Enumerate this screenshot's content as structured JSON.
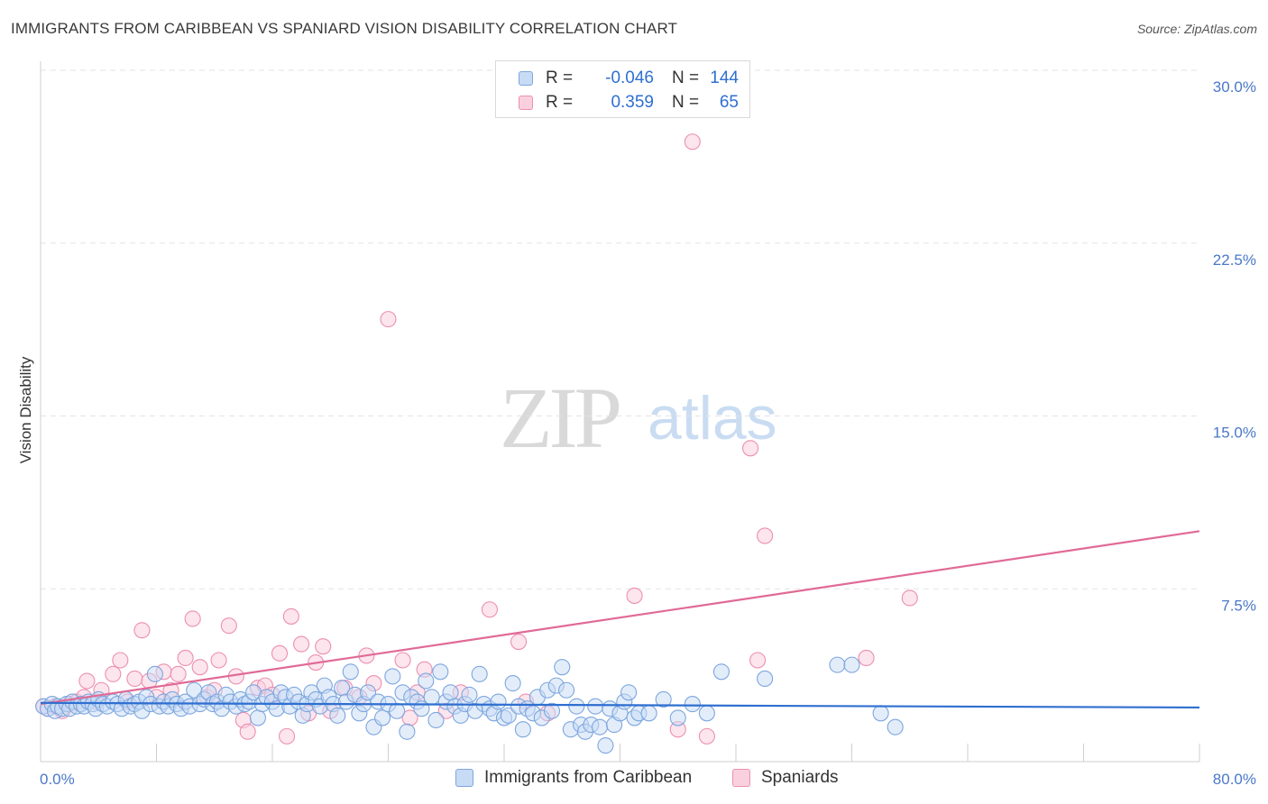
{
  "title": "IMMIGRANTS FROM CARIBBEAN VS SPANIARD VISION DISABILITY CORRELATION CHART",
  "source": "Source: ZipAtlas.com",
  "watermark": {
    "zip": "ZIP",
    "atlas": "atlas"
  },
  "legend_box": {
    "rows": [
      {
        "r_label": "R =",
        "r_value": "-0.046",
        "n_label": "N =",
        "n_value": "144"
      },
      {
        "r_label": "R =",
        "r_value": "0.359",
        "n_label": "N =",
        "n_value": "65"
      }
    ]
  },
  "colors": {
    "blue_fill": "#c8dbf5",
    "blue_stroke": "#7da6de",
    "blue_line": "#2f6fd0",
    "pink_fill": "#fbd0de",
    "pink_stroke": "#eb8fb0",
    "pink_line": "#e06a96",
    "grid": "#e3e3e3",
    "tick_text": "#4a78c8"
  },
  "chart_data": {
    "type": "scatter",
    "xlabel": "",
    "ylabel": "Vision Disability",
    "xlim": [
      0,
      80
    ],
    "ylim": [
      0,
      30
    ],
    "x_tick_labels": [
      {
        "value": 0,
        "label": "0.0%"
      },
      {
        "value": 80,
        "label": "80.0%"
      }
    ],
    "y_tick_labels": [
      {
        "value": 7.5,
        "label": "7.5%"
      },
      {
        "value": 15,
        "label": "15.0%"
      },
      {
        "value": 22.5,
        "label": "22.5%"
      },
      {
        "value": 30,
        "label": "30.0%"
      }
    ],
    "x_minor_ticks": [
      8,
      16,
      24,
      32,
      40,
      48,
      56,
      64,
      72,
      80
    ],
    "grid": true,
    "series": [
      {
        "name": "Immigrants from Caribbean",
        "color": "#7da6de",
        "trend": {
          "x": [
            0,
            80
          ],
          "y": [
            2.55,
            2.35
          ]
        },
        "points": [
          [
            0.2,
            2.4
          ],
          [
            0.5,
            2.3
          ],
          [
            0.8,
            2.5
          ],
          [
            1.0,
            2.2
          ],
          [
            1.2,
            2.4
          ],
          [
            1.5,
            2.3
          ],
          [
            1.8,
            2.5
          ],
          [
            2.0,
            2.3
          ],
          [
            2.2,
            2.6
          ],
          [
            2.5,
            2.4
          ],
          [
            2.8,
            2.5
          ],
          [
            3.0,
            2.4
          ],
          [
            3.3,
            2.6
          ],
          [
            3.6,
            2.5
          ],
          [
            3.8,
            2.3
          ],
          [
            4.0,
            2.7
          ],
          [
            4.3,
            2.5
          ],
          [
            4.6,
            2.4
          ],
          [
            5.0,
            2.6
          ],
          [
            5.3,
            2.5
          ],
          [
            5.6,
            2.3
          ],
          [
            5.9,
            2.7
          ],
          [
            6.2,
            2.4
          ],
          [
            6.5,
            2.5
          ],
          [
            6.8,
            2.6
          ],
          [
            7.0,
            2.2
          ],
          [
            7.3,
            2.8
          ],
          [
            7.6,
            2.5
          ],
          [
            7.9,
            3.8
          ],
          [
            8.2,
            2.4
          ],
          [
            8.5,
            2.6
          ],
          [
            8.8,
            2.4
          ],
          [
            9.1,
            2.7
          ],
          [
            9.4,
            2.5
          ],
          [
            9.7,
            2.3
          ],
          [
            10.0,
            2.6
          ],
          [
            10.3,
            2.4
          ],
          [
            10.6,
            3.1
          ],
          [
            11.0,
            2.5
          ],
          [
            11.3,
            2.7
          ],
          [
            11.6,
            3.0
          ],
          [
            11.9,
            2.5
          ],
          [
            12.2,
            2.6
          ],
          [
            12.5,
            2.3
          ],
          [
            12.8,
            2.9
          ],
          [
            13.1,
            2.6
          ],
          [
            13.5,
            2.4
          ],
          [
            13.8,
            2.7
          ],
          [
            14.1,
            2.5
          ],
          [
            14.4,
            2.6
          ],
          [
            14.7,
            3.0
          ],
          [
            15.0,
            1.9
          ],
          [
            15.3,
            2.5
          ],
          [
            15.6,
            2.8
          ],
          [
            16.0,
            2.6
          ],
          [
            16.3,
            2.3
          ],
          [
            16.6,
            3.0
          ],
          [
            16.9,
            2.8
          ],
          [
            17.2,
            2.4
          ],
          [
            17.5,
            2.9
          ],
          [
            17.8,
            2.6
          ],
          [
            18.1,
            2.0
          ],
          [
            18.4,
            2.5
          ],
          [
            18.7,
            3.0
          ],
          [
            19.0,
            2.7
          ],
          [
            19.3,
            2.4
          ],
          [
            19.6,
            3.3
          ],
          [
            19.9,
            2.8
          ],
          [
            20.2,
            2.5
          ],
          [
            20.5,
            2.0
          ],
          [
            20.8,
            3.2
          ],
          [
            21.1,
            2.6
          ],
          [
            21.4,
            3.9
          ],
          [
            21.7,
            2.9
          ],
          [
            22.0,
            2.1
          ],
          [
            22.3,
            2.5
          ],
          [
            22.6,
            3.0
          ],
          [
            23.0,
            1.5
          ],
          [
            23.3,
            2.6
          ],
          [
            23.6,
            1.9
          ],
          [
            24.0,
            2.5
          ],
          [
            24.3,
            3.7
          ],
          [
            24.6,
            2.2
          ],
          [
            25.0,
            3.0
          ],
          [
            25.3,
            1.3
          ],
          [
            25.6,
            2.8
          ],
          [
            26.0,
            2.6
          ],
          [
            26.3,
            2.3
          ],
          [
            26.6,
            3.5
          ],
          [
            27.0,
            2.8
          ],
          [
            27.3,
            1.8
          ],
          [
            27.6,
            3.9
          ],
          [
            28.0,
            2.6
          ],
          [
            28.3,
            3.0
          ],
          [
            28.6,
            2.4
          ],
          [
            29.0,
            2.0
          ],
          [
            29.3,
            2.5
          ],
          [
            29.6,
            2.9
          ],
          [
            30.0,
            2.2
          ],
          [
            30.3,
            3.8
          ],
          [
            30.6,
            2.5
          ],
          [
            31.0,
            2.3
          ],
          [
            31.3,
            2.1
          ],
          [
            31.6,
            2.6
          ],
          [
            32.0,
            1.9
          ],
          [
            32.3,
            2.0
          ],
          [
            32.6,
            3.4
          ],
          [
            33.0,
            2.4
          ],
          [
            33.3,
            1.4
          ],
          [
            33.6,
            2.3
          ],
          [
            34.0,
            2.1
          ],
          [
            34.3,
            2.8
          ],
          [
            34.6,
            1.9
          ],
          [
            35.0,
            3.1
          ],
          [
            35.3,
            2.2
          ],
          [
            35.6,
            3.3
          ],
          [
            36.0,
            4.1
          ],
          [
            36.3,
            3.1
          ],
          [
            36.6,
            1.4
          ],
          [
            37.0,
            2.4
          ],
          [
            37.3,
            1.6
          ],
          [
            37.6,
            1.3
          ],
          [
            38.0,
            1.6
          ],
          [
            38.3,
            2.4
          ],
          [
            38.6,
            1.5
          ],
          [
            39.0,
            0.7
          ],
          [
            39.3,
            2.3
          ],
          [
            39.6,
            1.6
          ],
          [
            40.0,
            2.1
          ],
          [
            40.3,
            2.6
          ],
          [
            40.6,
            3.0
          ],
          [
            41.0,
            1.9
          ],
          [
            41.3,
            2.1
          ],
          [
            42.0,
            2.1
          ],
          [
            43.0,
            2.7
          ],
          [
            44.0,
            1.9
          ],
          [
            45.0,
            2.5
          ],
          [
            46.0,
            2.1
          ],
          [
            47.0,
            3.9
          ],
          [
            50.0,
            3.6
          ],
          [
            55.0,
            4.2
          ],
          [
            56.0,
            4.2
          ],
          [
            58.0,
            2.1
          ],
          [
            59.0,
            1.5
          ]
        ]
      },
      {
        "name": "Spaniards",
        "color": "#eb8fb0",
        "trend": {
          "x": [
            0,
            80
          ],
          "y": [
            2.5,
            10.0
          ]
        },
        "points": [
          [
            0.2,
            2.4
          ],
          [
            0.5,
            2.3
          ],
          [
            1.0,
            2.4
          ],
          [
            1.5,
            2.2
          ],
          [
            2.0,
            2.5
          ],
          [
            2.5,
            2.6
          ],
          [
            3.0,
            2.8
          ],
          [
            3.2,
            3.5
          ],
          [
            3.8,
            2.6
          ],
          [
            4.2,
            3.1
          ],
          [
            5.0,
            3.8
          ],
          [
            5.5,
            4.4
          ],
          [
            6.0,
            2.6
          ],
          [
            6.5,
            3.6
          ],
          [
            7.0,
            5.7
          ],
          [
            7.5,
            3.5
          ],
          [
            8.0,
            2.8
          ],
          [
            8.5,
            3.9
          ],
          [
            9.0,
            3.1
          ],
          [
            9.5,
            3.8
          ],
          [
            10.0,
            4.5
          ],
          [
            10.5,
            6.2
          ],
          [
            11.0,
            4.1
          ],
          [
            11.5,
            2.8
          ],
          [
            12.0,
            3.1
          ],
          [
            12.3,
            4.4
          ],
          [
            13.0,
            5.9
          ],
          [
            13.5,
            3.7
          ],
          [
            14.0,
            1.8
          ],
          [
            14.3,
            1.3
          ],
          [
            15.0,
            3.2
          ],
          [
            15.5,
            3.3
          ],
          [
            16.0,
            2.9
          ],
          [
            16.5,
            4.7
          ],
          [
            17.0,
            1.1
          ],
          [
            17.3,
            6.3
          ],
          [
            18.0,
            5.1
          ],
          [
            18.5,
            2.1
          ],
          [
            19.0,
            4.3
          ],
          [
            19.5,
            5.0
          ],
          [
            20.0,
            2.2
          ],
          [
            21.0,
            3.2
          ],
          [
            22.0,
            2.8
          ],
          [
            22.5,
            4.6
          ],
          [
            23.0,
            3.4
          ],
          [
            24.0,
            19.2
          ],
          [
            25.0,
            4.4
          ],
          [
            25.5,
            1.9
          ],
          [
            26.0,
            3.0
          ],
          [
            26.5,
            4.0
          ],
          [
            28.0,
            2.2
          ],
          [
            29.0,
            3.0
          ],
          [
            31.0,
            6.6
          ],
          [
            33.0,
            5.2
          ],
          [
            35.0,
            2.1
          ],
          [
            41.0,
            7.2
          ],
          [
            44.0,
            1.4
          ],
          [
            45.0,
            26.9
          ],
          [
            46.0,
            1.1
          ],
          [
            49.0,
            13.6
          ],
          [
            49.5,
            4.4
          ],
          [
            50.0,
            9.8
          ],
          [
            57.0,
            4.5
          ],
          [
            60.0,
            7.1
          ],
          [
            33.5,
            2.6
          ]
        ]
      }
    ]
  },
  "bottom_legend": [
    {
      "label": "Immigrants from Caribbean",
      "swatch": "blue"
    },
    {
      "label": "Spaniards",
      "swatch": "pink"
    }
  ]
}
